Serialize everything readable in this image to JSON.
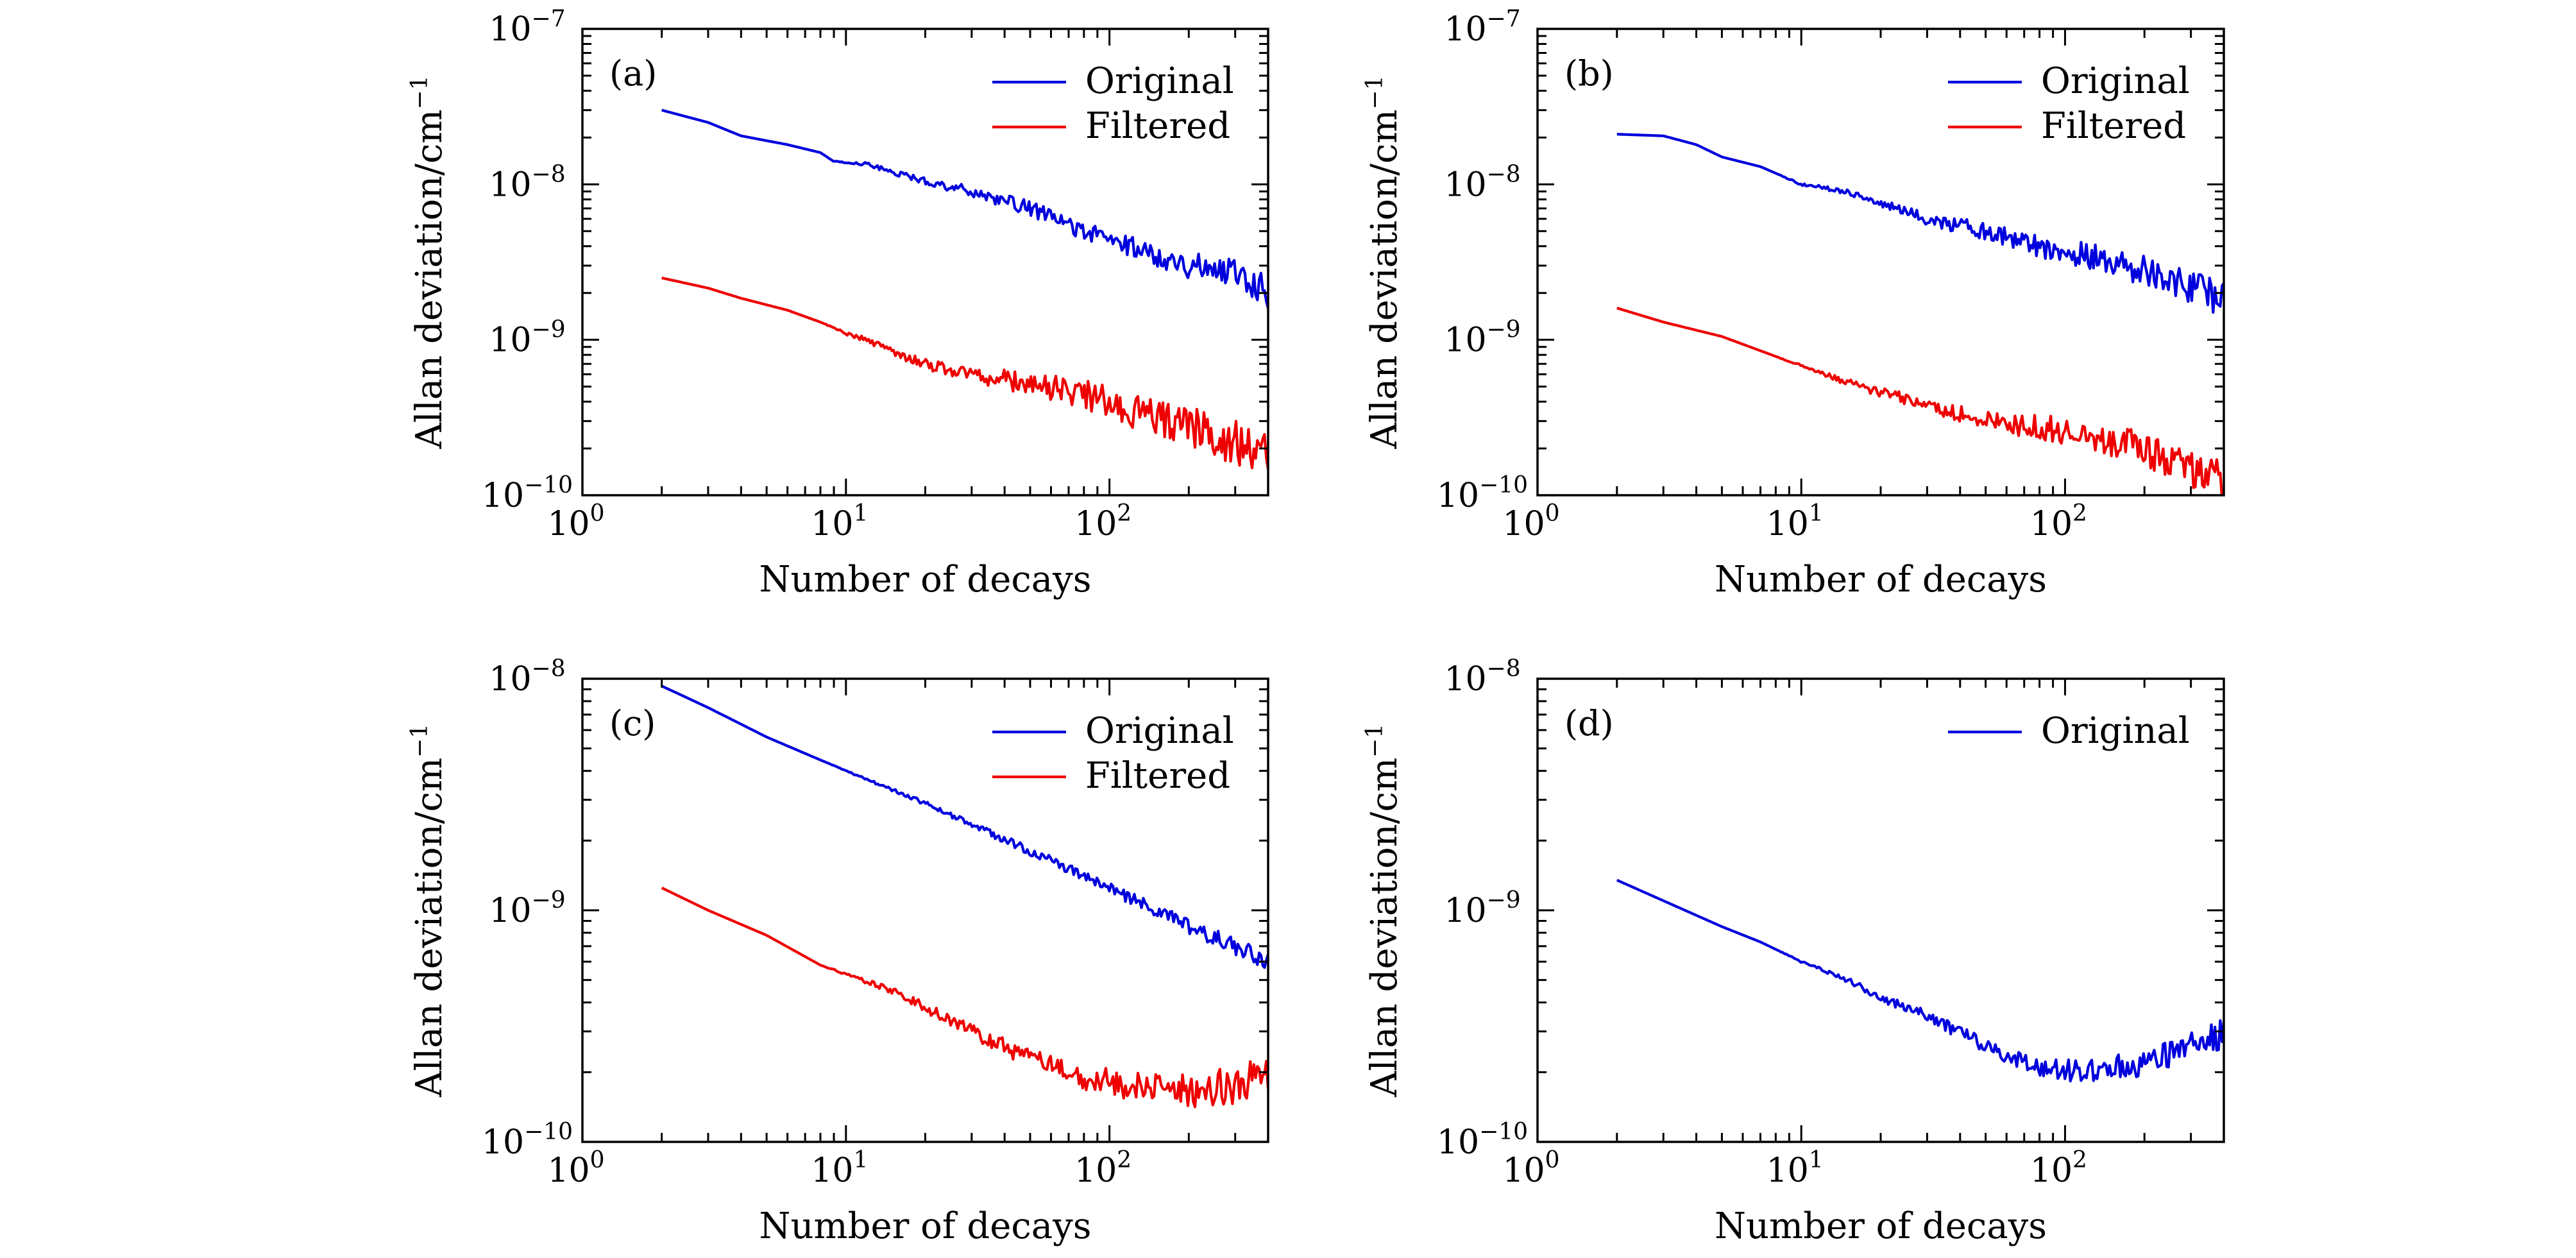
{
  "colors": {
    "original": "#0000dd",
    "filtered": "#ee0000",
    "axes": "#000000"
  },
  "chart_data": [
    {
      "type": "line",
      "panel_tag": "(a)",
      "xlabel": "Number of decays",
      "ylabel": "Allan deviation/cm",
      "ylabel_exp": "−1",
      "xscale": "log",
      "yscale": "log",
      "xlim": [
        1,
        400
      ],
      "ylim": [
        1e-10,
        1e-07
      ],
      "xticks": [
        {
          "base": "10",
          "exp": "0",
          "value": 1
        },
        {
          "base": "10",
          "exp": "1",
          "value": 10
        },
        {
          "base": "10",
          "exp": "2",
          "value": 100
        }
      ],
      "yticks": [
        {
          "base": "10",
          "exp": "−10",
          "value": 1e-10
        },
        {
          "base": "10",
          "exp": "−9",
          "value": 1e-09
        },
        {
          "base": "10",
          "exp": "−8",
          "value": 1e-08
        },
        {
          "base": "10",
          "exp": "−7",
          "value": 1e-07
        }
      ],
      "legend": "top-right",
      "series": [
        {
          "name": "Original",
          "color": "#0000dd",
          "noise": 0.1,
          "points": [
            [
              2,
              3e-08
            ],
            [
              3,
              2.5e-08
            ],
            [
              4,
              2.05e-08
            ],
            [
              6,
              1.8e-08
            ],
            [
              8,
              1.6e-08
            ],
            [
              9,
              1.4e-08
            ],
            [
              12,
              1.35e-08
            ],
            [
              15,
              1.2e-08
            ],
            [
              20,
              1.05e-08
            ],
            [
              30,
              9e-09
            ],
            [
              50,
              7e-09
            ],
            [
              80,
              5e-09
            ],
            [
              120,
              4e-09
            ],
            [
              200,
              3e-09
            ],
            [
              300,
              2.8e-09
            ],
            [
              400,
              2e-09
            ]
          ]
        },
        {
          "name": "Filtered",
          "color": "#ee0000",
          "noise": 0.16,
          "points": [
            [
              2,
              2.5e-09
            ],
            [
              3,
              2.15e-09
            ],
            [
              4,
              1.85e-09
            ],
            [
              6,
              1.55e-09
            ],
            [
              8,
              1.3e-09
            ],
            [
              10,
              1.1e-09
            ],
            [
              12,
              1e-09
            ],
            [
              15,
              8.5e-10
            ],
            [
              20,
              7e-10
            ],
            [
              30,
              6e-10
            ],
            [
              50,
              5.2e-10
            ],
            [
              80,
              4.5e-10
            ],
            [
              120,
              3.5e-10
            ],
            [
              200,
              2.8e-10
            ],
            [
              300,
              2.2e-10
            ],
            [
              400,
              1.8e-10
            ]
          ]
        }
      ]
    },
    {
      "type": "line",
      "panel_tag": "(b)",
      "xlabel": "Number of decays",
      "ylabel": "Allan deviation/cm",
      "ylabel_exp": "−1",
      "xscale": "log",
      "yscale": "log",
      "xlim": [
        1,
        400
      ],
      "ylim": [
        1e-10,
        1e-07
      ],
      "xticks": [
        {
          "base": "10",
          "exp": "0",
          "value": 1
        },
        {
          "base": "10",
          "exp": "1",
          "value": 10
        },
        {
          "base": "10",
          "exp": "2",
          "value": 100
        }
      ],
      "yticks": [
        {
          "base": "10",
          "exp": "−10",
          "value": 1e-10
        },
        {
          "base": "10",
          "exp": "−9",
          "value": 1e-09
        },
        {
          "base": "10",
          "exp": "−8",
          "value": 1e-08
        },
        {
          "base": "10",
          "exp": "−7",
          "value": 1e-07
        }
      ],
      "legend": "top-right",
      "series": [
        {
          "name": "Original",
          "color": "#0000dd",
          "noise": 0.12,
          "points": [
            [
              2,
              2.1e-08
            ],
            [
              3,
              2.05e-08
            ],
            [
              4,
              1.8e-08
            ],
            [
              5,
              1.5e-08
            ],
            [
              7,
              1.3e-08
            ],
            [
              10,
              1e-08
            ],
            [
              15,
              9e-09
            ],
            [
              20,
              7.5e-09
            ],
            [
              30,
              6e-09
            ],
            [
              50,
              5e-09
            ],
            [
              80,
              4e-09
            ],
            [
              120,
              3.5e-09
            ],
            [
              200,
              2.8e-09
            ],
            [
              300,
              2.2e-09
            ],
            [
              400,
              1.8e-09
            ]
          ]
        },
        {
          "name": "Filtered",
          "color": "#ee0000",
          "noise": 0.14,
          "points": [
            [
              2,
              1.6e-09
            ],
            [
              3,
              1.3e-09
            ],
            [
              5,
              1.05e-09
            ],
            [
              7,
              8.5e-10
            ],
            [
              10,
              6.8e-10
            ],
            [
              15,
              5.3e-10
            ],
            [
              20,
              4.6e-10
            ],
            [
              30,
              3.8e-10
            ],
            [
              50,
              3e-10
            ],
            [
              80,
              2.7e-10
            ],
            [
              120,
              2.5e-10
            ],
            [
              200,
              2e-10
            ],
            [
              300,
              1.5e-10
            ],
            [
              400,
              1.2e-10
            ]
          ]
        }
      ]
    },
    {
      "type": "line",
      "panel_tag": "(c)",
      "xlabel": "Number of decays",
      "ylabel": "Allan deviation/cm",
      "ylabel_exp": "−1",
      "xscale": "log",
      "yscale": "log",
      "xlim": [
        1,
        400
      ],
      "ylim": [
        1e-10,
        1e-08
      ],
      "xticks": [
        {
          "base": "10",
          "exp": "0",
          "value": 1
        },
        {
          "base": "10",
          "exp": "1",
          "value": 10
        },
        {
          "base": "10",
          "exp": "2",
          "value": 100
        }
      ],
      "yticks": [
        {
          "base": "10",
          "exp": "−10",
          "value": 1e-10
        },
        {
          "base": "10",
          "exp": "−9",
          "value": 1e-09
        },
        {
          "base": "10",
          "exp": "−8",
          "value": 1e-08
        }
      ],
      "legend": "top-right",
      "series": [
        {
          "name": "Original",
          "color": "#0000dd",
          "noise": 0.04,
          "points": [
            [
              2,
              9.3e-09
            ],
            [
              3,
              7.5e-09
            ],
            [
              5,
              5.6e-09
            ],
            [
              10,
              4e-09
            ],
            [
              20,
              2.9e-09
            ],
            [
              50,
              1.8e-09
            ],
            [
              100,
              1.25e-09
            ],
            [
              200,
              8.5e-10
            ],
            [
              300,
              7e-10
            ],
            [
              400,
              6e-10
            ]
          ]
        },
        {
          "name": "Filtered",
          "color": "#ee0000",
          "noise": 0.09,
          "points": [
            [
              2,
              1.25e-09
            ],
            [
              3,
              1e-09
            ],
            [
              5,
              7.8e-10
            ],
            [
              8,
              5.8e-10
            ],
            [
              10,
              5.3e-10
            ],
            [
              15,
              4.5e-10
            ],
            [
              20,
              3.8e-10
            ],
            [
              30,
              3e-10
            ],
            [
              50,
              2.3e-10
            ],
            [
              80,
              1.9e-10
            ],
            [
              120,
              1.75e-10
            ],
            [
              200,
              1.65e-10
            ],
            [
              300,
              1.75e-10
            ],
            [
              400,
              2e-10
            ]
          ]
        }
      ]
    },
    {
      "type": "line",
      "panel_tag": "(d)",
      "xlabel": "Number of decays",
      "ylabel": "Allan deviation/cm",
      "ylabel_exp": "−1",
      "xscale": "log",
      "yscale": "log",
      "xlim": [
        1,
        400
      ],
      "ylim": [
        1e-10,
        1e-08
      ],
      "xticks": [
        {
          "base": "10",
          "exp": "0",
          "value": 1
        },
        {
          "base": "10",
          "exp": "1",
          "value": 10
        },
        {
          "base": "10",
          "exp": "2",
          "value": 100
        }
      ],
      "yticks": [
        {
          "base": "10",
          "exp": "−10",
          "value": 1e-10
        },
        {
          "base": "10",
          "exp": "−9",
          "value": 1e-09
        },
        {
          "base": "10",
          "exp": "−8",
          "value": 1e-08
        }
      ],
      "legend": "top-right",
      "series": [
        {
          "name": "Original",
          "color": "#0000dd",
          "noise": 0.07,
          "points": [
            [
              2,
              1.35e-09
            ],
            [
              3,
              1.1e-09
            ],
            [
              5,
              8.5e-10
            ],
            [
              7,
              7.3e-10
            ],
            [
              10,
              6e-10
            ],
            [
              15,
              5e-10
            ],
            [
              20,
              4.2e-10
            ],
            [
              30,
              3.5e-10
            ],
            [
              50,
              2.6e-10
            ],
            [
              80,
              2.1e-10
            ],
            [
              120,
              2e-10
            ],
            [
              200,
              2.2e-10
            ],
            [
              300,
              2.6e-10
            ],
            [
              400,
              3e-10
            ]
          ]
        }
      ]
    }
  ]
}
